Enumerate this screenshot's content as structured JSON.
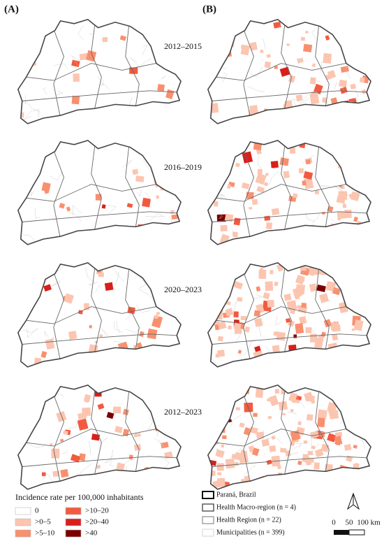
{
  "panels": [
    "(A)",
    "(B)"
  ],
  "periods": [
    "2012–2015",
    "2016–2019",
    "2020–2023",
    "2012–2023"
  ],
  "legend": {
    "title": "Incidence rate per 100,000 inhabitants",
    "classes": [
      {
        "label": "0",
        "color": "#ffffff"
      },
      {
        "label": ">0–5",
        "color": "#fcc5b0"
      },
      {
        "label": ">5–10",
        "color": "#f8906f"
      },
      {
        "label": ">10–20",
        "color": "#f25a40"
      },
      {
        "label": ">20–40",
        "color": "#d91f1c"
      },
      {
        "label": ">40",
        "color": "#7a0000"
      }
    ]
  },
  "boundaries": [
    "Paraná, Brazil",
    "Health Macro-region (n = 4)",
    "Health Region (n = 22)",
    "Municipalities (n = 399)"
  ],
  "scale_bar": [
    "0",
    "50",
    "100 km"
  ]
}
